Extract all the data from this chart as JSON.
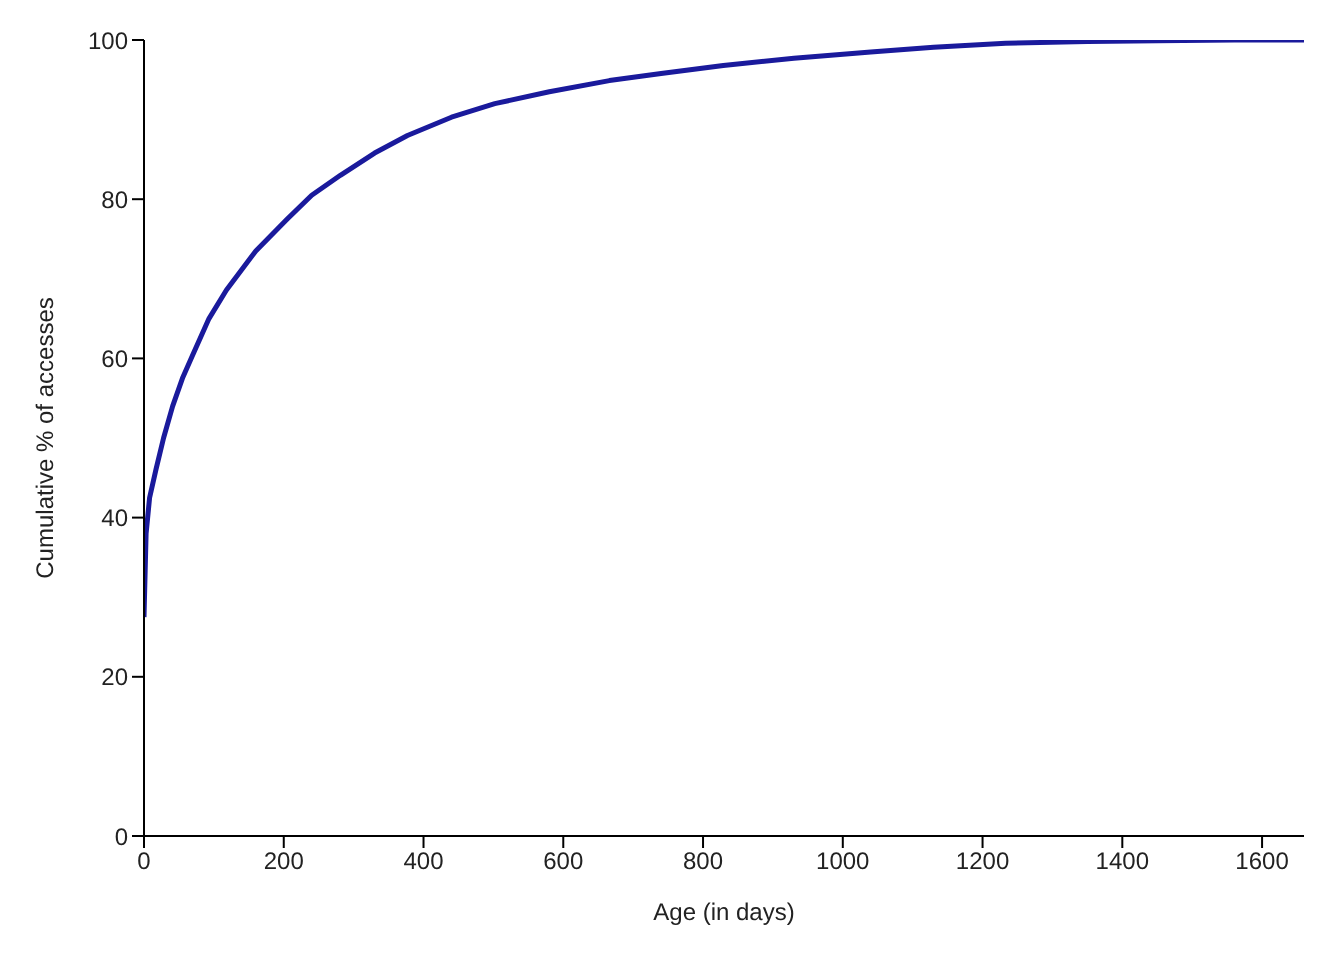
{
  "chart_data": {
    "type": "line",
    "xlabel": "Age (in days)",
    "ylabel": "Cumulative % of accesses",
    "x": [
      0,
      3,
      8,
      17,
      28,
      41,
      55,
      70,
      93,
      118,
      160,
      205,
      240,
      281,
      330,
      377,
      440,
      502,
      580,
      666,
      740,
      829,
      930,
      1040,
      1130,
      1233,
      1350,
      1450,
      1560,
      1660
    ],
    "series": [
      {
        "color": "#1a1a9c",
        "values": [
          27.5,
          38,
          42.5,
          46,
          50,
          54,
          57.5,
          60.5,
          65,
          68.6,
          73.5,
          77.5,
          80.5,
          83,
          85.8,
          88,
          90.3,
          92,
          93.5,
          94.9,
          95.8,
          96.8,
          97.7,
          98.5,
          99.1,
          99.6,
          99.8,
          99.9,
          100,
          100
        ]
      }
    ],
    "xlim": [
      0,
      1660
    ],
    "xticks": [
      0,
      200,
      400,
      600,
      800,
      1000,
      1200,
      1400,
      1600
    ],
    "ylim": [
      0,
      100
    ],
    "yticks": [
      0,
      20,
      40,
      60,
      80,
      100
    ],
    "grid": false,
    "legend": false,
    "marker": "none",
    "line_style": "solid"
  }
}
